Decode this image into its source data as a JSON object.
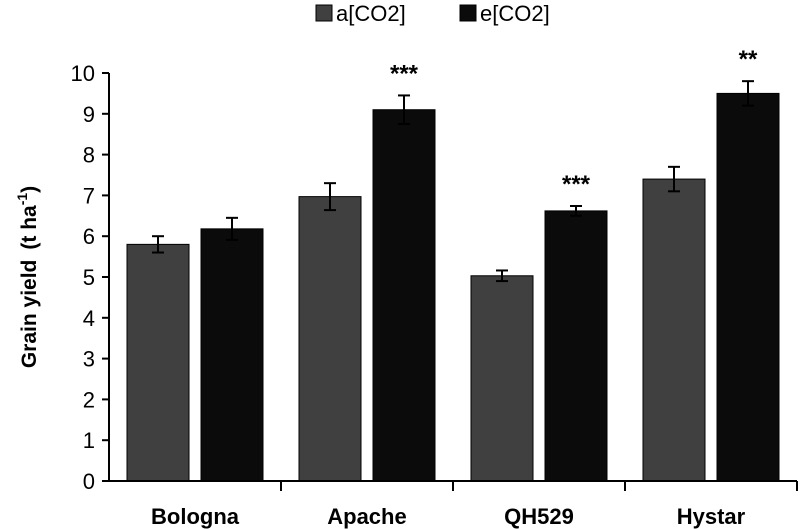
{
  "chart_data": {
    "type": "bar",
    "title": "",
    "xlabel": "",
    "ylabel": "Grain yield",
    "ylabel_unit_prefix": "(t ha",
    "ylabel_unit_sup": "-1",
    "ylabel_unit_suffix": ")",
    "ylim": [
      0,
      10
    ],
    "yticks": [
      "0",
      "1",
      "2",
      "3",
      "4",
      "5",
      "6",
      "7",
      "8",
      "9",
      "10"
    ],
    "grid": false,
    "legend_position": "top-center",
    "categories": [
      "Bologna",
      "Apache",
      "QH529",
      "Hystar"
    ],
    "series": [
      {
        "name": "a[CO2]",
        "color": "#404040",
        "values": [
          5.8,
          6.97,
          5.03,
          7.4
        ],
        "errors": [
          0.2,
          0.33,
          0.13,
          0.3
        ]
      },
      {
        "name": "e[CO2]",
        "color": "#0b0b0b",
        "values": [
          6.18,
          9.1,
          6.62,
          9.5
        ],
        "errors": [
          0.27,
          0.35,
          0.12,
          0.3
        ]
      }
    ],
    "annotations": [
      {
        "category_index": 1,
        "text": "***"
      },
      {
        "category_index": 2,
        "text": "***"
      },
      {
        "category_index": 3,
        "text": "**"
      }
    ]
  }
}
